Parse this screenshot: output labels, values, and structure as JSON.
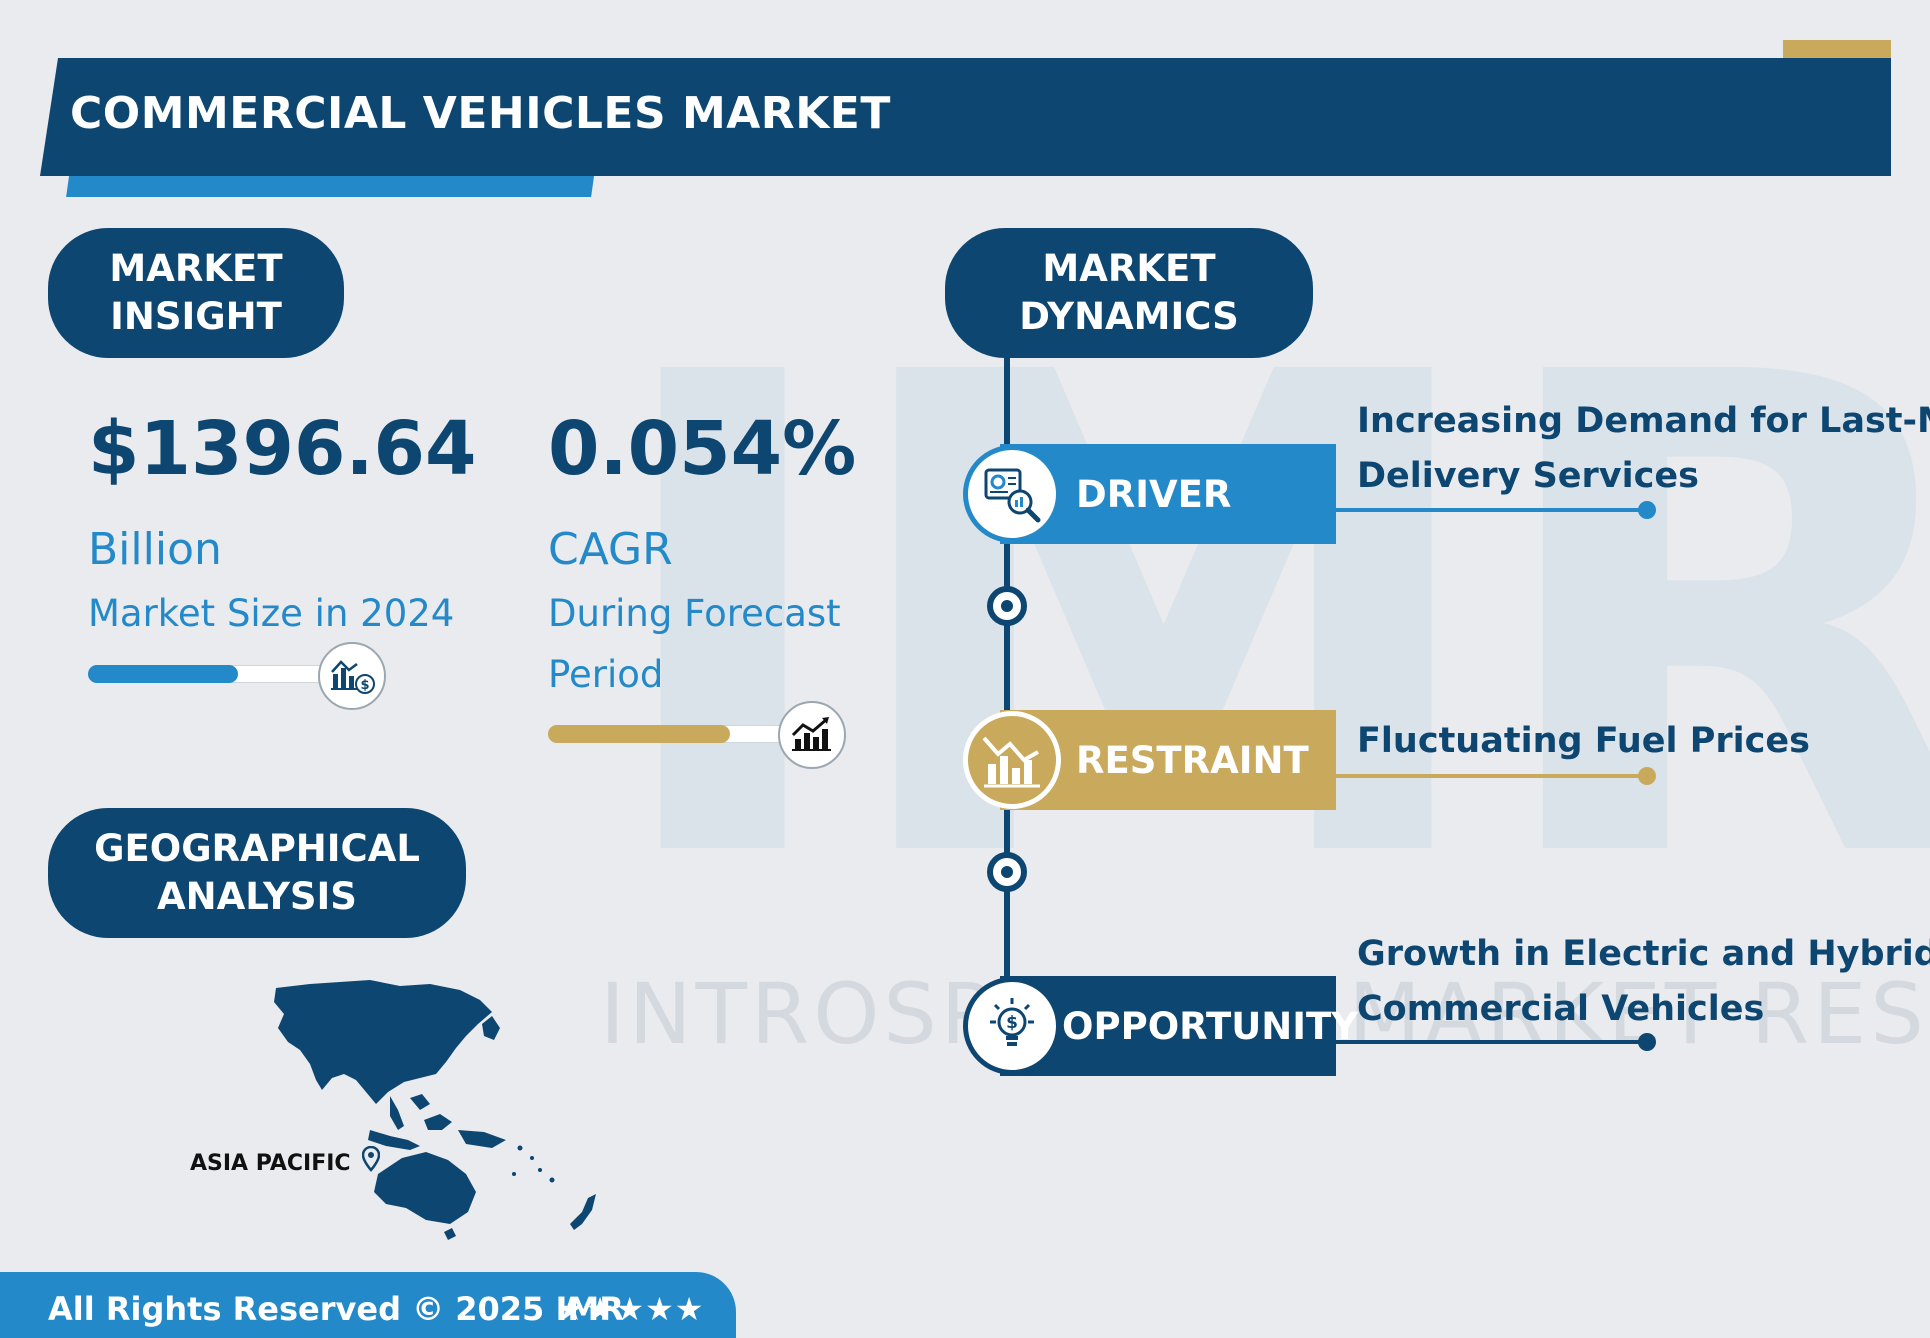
{
  "header": {
    "title": "COMMERCIAL VEHICLES MARKET"
  },
  "insight": {
    "label_line1": "MARKET",
    "label_line2": "INSIGHT",
    "market_size": {
      "value": "$1396.64",
      "unit": "Billion",
      "caption": "Market Size in 2024",
      "progress": 0.6,
      "icon": "chart-dollar-icon",
      "color": "#2389c8"
    },
    "cagr": {
      "value": "0.054%",
      "unit": "CAGR",
      "caption_line1": "During Forecast",
      "caption_line2": "Period",
      "progress": 0.76,
      "icon": "growth-chart-icon",
      "color": "#c9a95b"
    }
  },
  "geo": {
    "label_line1": "GEOGRAPHICAL",
    "label_line2": "ANALYSIS",
    "region": "ASIA PACIFIC",
    "icon": "location-pin-icon"
  },
  "dynamics": {
    "label_line1": "MARKET",
    "label_line2": "DYNAMICS",
    "items": [
      {
        "label": "DRIVER",
        "text_line1": "Increasing Demand for Last-Mile",
        "text_line2": "Delivery Services",
        "color": "#2389c8",
        "icon": "analytics-magnifier-icon"
      },
      {
        "label": "RESTRAINT",
        "text_line1": "Fluctuating Fuel Prices",
        "text_line2": "",
        "color": "#c9a95b",
        "icon": "declining-chart-icon"
      },
      {
        "label": "OPPORTUNITY",
        "text_line1": "Growth in Electric and Hybrid",
        "text_line2": "Commercial Vehicles",
        "color": "#0d4670",
        "icon": "idea-dollar-icon"
      }
    ]
  },
  "watermark": {
    "letters": "IMR",
    "text": "INTROSPECTIVE MARKET RESEARCH"
  },
  "footer": {
    "text": "All Rights Reserved © 2025 IMR",
    "stars": "★★★★★"
  },
  "colors": {
    "navy": "#0d4670",
    "blue": "#2389c8",
    "gold": "#c9a95b",
    "background": "#e9ebee"
  }
}
